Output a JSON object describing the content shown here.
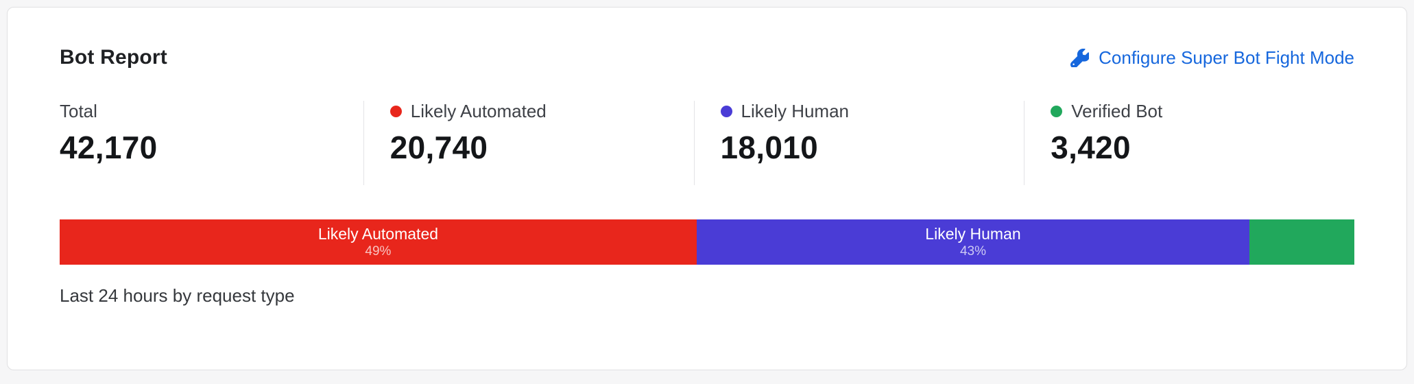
{
  "card": {
    "title": "Bot Report",
    "configure_label": "Configure Super Bot Fight Mode",
    "footer": "Last 24 hours by request type",
    "stats": [
      {
        "label": "Total",
        "value": "42,170"
      },
      {
        "label": "Likely Automated",
        "value": "20,740",
        "dot_color": "#e8261c"
      },
      {
        "label": "Likely Human",
        "value": "18,010",
        "dot_color": "#4a3cd6"
      },
      {
        "label": "Verified Bot",
        "value": "3,420",
        "dot_color": "#21a85c"
      }
    ]
  },
  "colors": {
    "link_blue": "#1667dd",
    "likely_automated_red": "#e8261c",
    "likely_human_indigo": "#4a3cd6",
    "verified_bot_green": "#21a85c"
  },
  "chart_data": {
    "type": "bar",
    "title": "Bot Report",
    "subtitle": "Last 24 hours by request type",
    "total": 42170,
    "categories": [
      "Likely Automated",
      "Likely Human",
      "Verified Bot"
    ],
    "series": [
      {
        "name": "Likely Automated",
        "value": 20740,
        "percent_label": "49%",
        "width_percent": 49.2,
        "color": "#e8261c",
        "label_shown": true
      },
      {
        "name": "Likely Human",
        "value": 18010,
        "percent_label": "43%",
        "width_percent": 42.7,
        "color": "#4a3cd6",
        "label_shown": true
      },
      {
        "name": "Verified Bot",
        "value": 3420,
        "percent_label": "",
        "width_percent": 8.1,
        "color": "#21a85c",
        "label_shown": false
      }
    ],
    "layout": {
      "orientation": "horizontal-stacked",
      "legend": "inline-stat-dots",
      "axis": "none"
    }
  }
}
